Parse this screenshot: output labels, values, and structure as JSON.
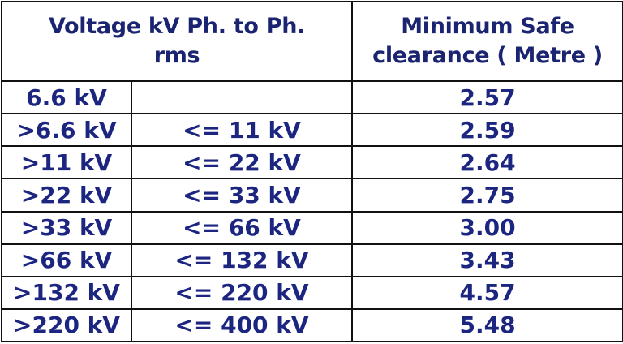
{
  "table": {
    "header": [
      [
        "Voltage kV Ph. to Ph.",
        "rms"
      ],
      [
        "Minimum Safe",
        "clearance ( Metre )"
      ]
    ],
    "rows": [
      [
        "6.6 kV",
        null,
        "2.57"
      ],
      [
        ">6.6 kV",
        "<= 11 kV",
        "2.59"
      ],
      [
        ">11 kV",
        "<= 22 kV",
        "2.64"
      ],
      [
        ">22 kV",
        "<= 33 kV",
        "2.75"
      ],
      [
        ">33 kV",
        "<= 66 kV",
        "3.00"
      ],
      [
        ">66 kV",
        "<= 132 kV",
        "3.43"
      ],
      [
        ">132 kV",
        "<= 220 kV",
        "4.57"
      ],
      [
        ">220 kV",
        "<= 400 kV",
        "5.48"
      ]
    ]
  }
}
